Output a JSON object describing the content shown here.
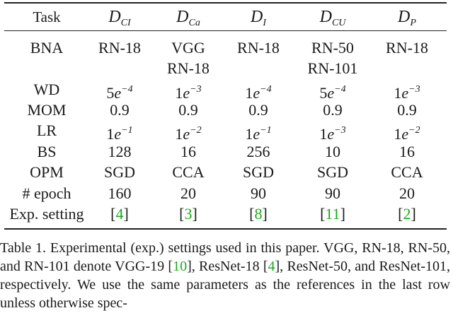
{
  "table": {
    "header": {
      "task": "Task",
      "cols": [
        {
          "main": "D",
          "sub": "CI"
        },
        {
          "main": "D",
          "sub": "Ca"
        },
        {
          "main": "D",
          "sub": "I"
        },
        {
          "main": "D",
          "sub": "CU"
        },
        {
          "main": "D",
          "sub": "P"
        }
      ]
    },
    "rows": [
      {
        "label": "BNA",
        "values": [
          "RN-18",
          "VGG",
          "RN-18",
          "RN-50",
          "RN-18"
        ],
        "values2": [
          "",
          "RN-18",
          "",
          "RN-101",
          ""
        ]
      },
      {
        "label": "WD",
        "mant": [
          "5",
          "1",
          "1",
          "5",
          "1"
        ],
        "exp": [
          "−4",
          "−3",
          "−4",
          "−4",
          "−3"
        ]
      },
      {
        "label": "MOM",
        "values": [
          "0.9",
          "0.9",
          "0.9",
          "0.9",
          "0.9"
        ]
      },
      {
        "label": "LR",
        "mant": [
          "1",
          "1",
          "1",
          "1",
          "1"
        ],
        "exp": [
          "−1",
          "−2",
          "−1",
          "−3",
          "−2"
        ]
      },
      {
        "label": "BS",
        "values": [
          "128",
          "16",
          "256",
          "10",
          "16"
        ]
      },
      {
        "label": "OPM",
        "values": [
          "SGD",
          "CCA",
          "SGD",
          "SGD",
          "CCA"
        ]
      },
      {
        "label": "# epoch",
        "values": [
          "160",
          "20",
          "90",
          "90",
          "20"
        ]
      },
      {
        "label": "Exp. setting",
        "refs": [
          "4",
          "3",
          "8",
          "11",
          "2"
        ]
      }
    ],
    "exp_base": "e"
  },
  "caption": {
    "part1": "Table 1. Experimental (exp.)  settings used in this paper.  VGG, RN-18, RN-50, and RN-101 denote VGG-19 [",
    "ref1": "10",
    "part2": "], ResNet-18 [",
    "ref2": "4",
    "part3": "], ResNet-50, and ResNet-101, respectively.  We use the same parameters as the references in the last row unless otherwise spec-"
  },
  "colors": {
    "link": "#1aa81a",
    "text": "#1a1a1a"
  }
}
